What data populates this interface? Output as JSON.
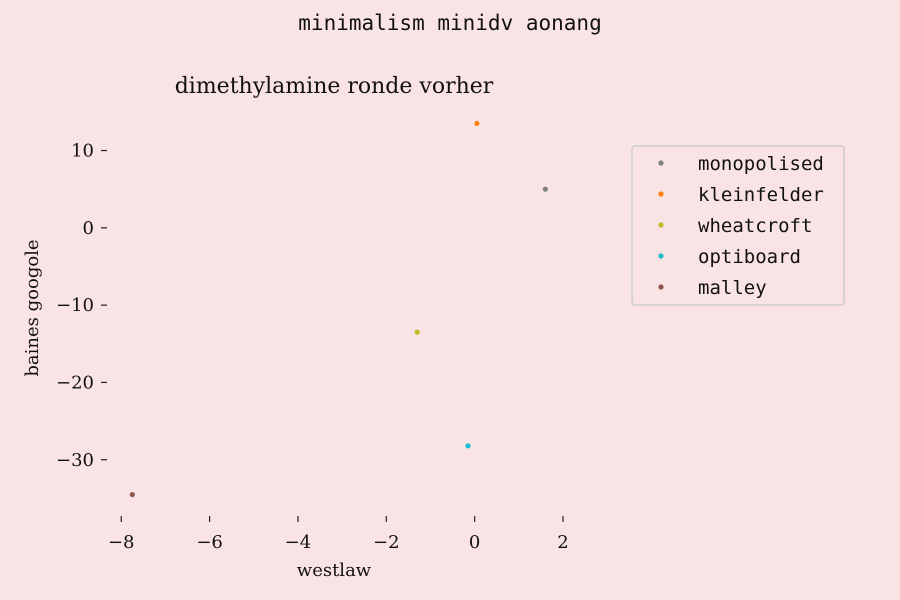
{
  "suptitle": "minimalism minidv aonang",
  "chart_data": {
    "type": "scatter",
    "title": "dimethylamine ronde vorher",
    "xlabel": "westlaw",
    "ylabel": "baines googole",
    "xlim": [
      -8.3,
      2.0
    ],
    "ylim": [
      -36.5,
      15.5
    ],
    "xticks": [
      -8,
      -6,
      -4,
      -2,
      0,
      2
    ],
    "yticks": [
      10,
      0,
      -10,
      -20,
      -30
    ],
    "grid": false,
    "legend_position": "upper-right",
    "series": [
      {
        "name": "monopolised",
        "color": "#7f7f7f",
        "points": [
          [
            1.6,
            5.0
          ]
        ]
      },
      {
        "name": "kleinfelder",
        "color": "#ff7f0e",
        "points": [
          [
            0.05,
            13.5
          ]
        ]
      },
      {
        "name": "wheatcroft",
        "color": "#bcbd22",
        "points": [
          [
            -1.3,
            -13.5
          ]
        ]
      },
      {
        "name": "optiboard",
        "color": "#17becf",
        "points": [
          [
            -0.15,
            -28.2
          ]
        ]
      },
      {
        "name": "malley",
        "color": "#8c564b",
        "points": [
          [
            -7.75,
            -34.5
          ]
        ]
      }
    ]
  }
}
